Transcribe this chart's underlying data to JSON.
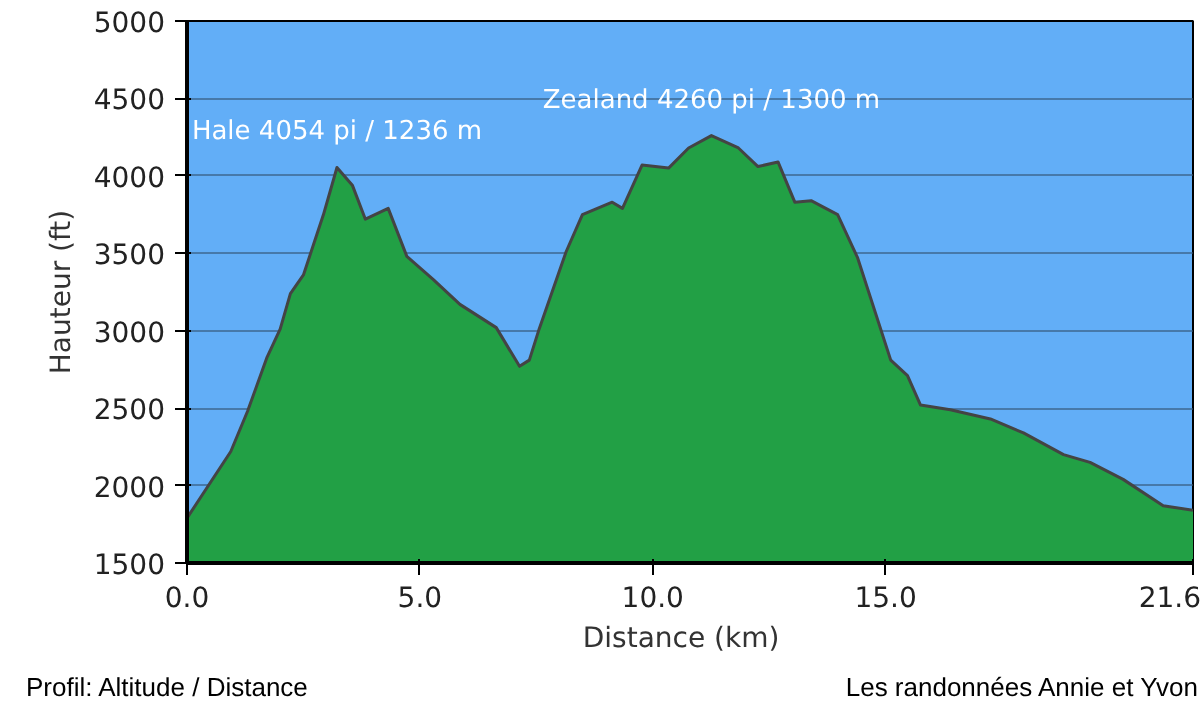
{
  "chart_data": {
    "type": "area",
    "xlabel": "Distance   (km)",
    "ylabel": "Hauteur (ft)",
    "xlim": [
      0,
      21.6
    ],
    "ylim": [
      1500,
      5000
    ],
    "xticks": [
      {
        "value": 0,
        "label": "0.0"
      },
      {
        "value": 5,
        "label": "5.0"
      },
      {
        "value": 10,
        "label": "10.0"
      },
      {
        "value": 15,
        "label": "15.0"
      },
      {
        "value": 21.6,
        "label": "21.6"
      }
    ],
    "yticks": [
      1500,
      2000,
      2500,
      3000,
      3500,
      4000,
      4500,
      5000
    ],
    "grid": "y",
    "x": [
      0,
      0.94,
      1.3,
      1.72,
      2.0,
      2.22,
      2.5,
      2.93,
      3.22,
      3.55,
      3.83,
      4.32,
      4.72,
      5.29,
      5.86,
      6.64,
      7.14,
      7.35,
      7.56,
      8.14,
      8.49,
      9.13,
      9.35,
      9.77,
      10.34,
      10.77,
      11.26,
      11.84,
      12.26,
      12.69,
      13.05,
      13.4,
      13.97,
      14.4,
      15.11,
      15.47,
      15.75,
      16.39,
      17.25,
      17.96,
      18.82,
      19.39,
      20.1,
      20.96,
      21.6
    ],
    "series": [
      {
        "color": "#22a045",
        "values": [
          1790,
          2220,
          2480,
          2830,
          3010,
          3240,
          3360,
          3750,
          4054,
          3940,
          3720,
          3790,
          3480,
          3330,
          3170,
          3020,
          2770,
          2810,
          3010,
          3510,
          3750,
          3830,
          3790,
          4070,
          4050,
          4180,
          4260,
          4180,
          4060,
          4090,
          3830,
          3840,
          3750,
          3470,
          2810,
          2710,
          2520,
          2490,
          2430,
          2340,
          2200,
          2150,
          2040,
          1870,
          1840
        ]
      }
    ],
    "annotations": [
      {
        "text": "Hale 4054 pi / 1236 m",
        "x": 3.22,
        "y": 4054
      },
      {
        "text": "Zealand 4260 pi / 1300 m",
        "x": 11.26,
        "y": 4260
      },
      "Profil: Altitude / Distance",
      "Les randonnées Annie et Yvon"
    ]
  }
}
